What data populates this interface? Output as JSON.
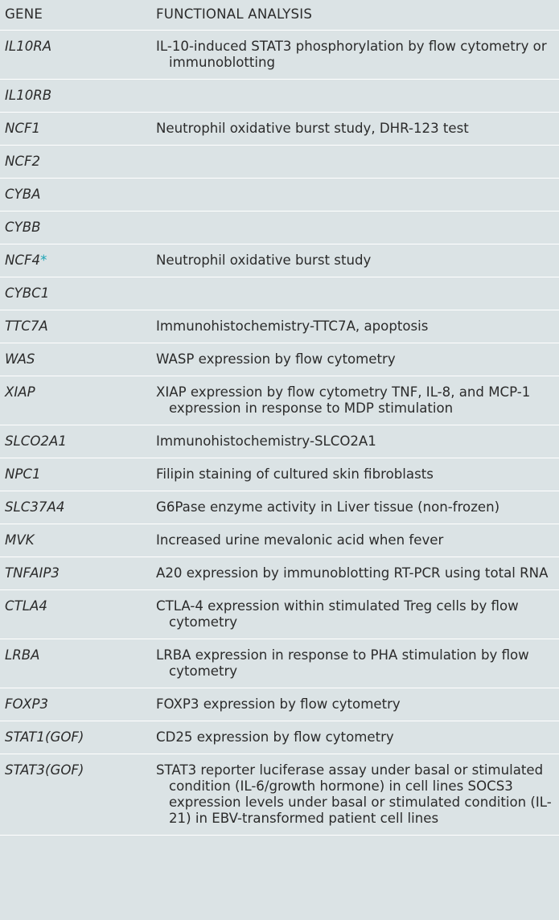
{
  "table": {
    "headers": [
      "GENE",
      "FUNCTIONAL ANALYSIS"
    ],
    "rows": [
      {
        "gene": "IL10RA",
        "analysis": "IL-10-induced STAT3 phosphorylation by flow cytometry or immunoblotting"
      },
      {
        "gene": "IL10RB",
        "analysis": ""
      },
      {
        "gene": "NCF1",
        "analysis": "Neutrophil oxidative burst study, DHR-123 test"
      },
      {
        "gene": "NCF2",
        "analysis": ""
      },
      {
        "gene": "CYBA",
        "analysis": ""
      },
      {
        "gene": "CYBB",
        "analysis": ""
      },
      {
        "gene": "NCF4",
        "marker": "*",
        "analysis": "Neutrophil oxidative burst study"
      },
      {
        "gene": "CYBC1",
        "analysis": ""
      },
      {
        "gene": "TTC7A",
        "analysis": "Immunohistochemistry-TTC7A, apoptosis"
      },
      {
        "gene": "WAS",
        "analysis": "WASP expression by flow cytometry"
      },
      {
        "gene": "XIAP",
        "analysis": "XIAP expression by flow cytometry TNF, IL-8, and MCP-1 expression in response to MDP stimulation"
      },
      {
        "gene": "SLCO2A1",
        "analysis": "Immunohistochemistry-SLCO2A1"
      },
      {
        "gene": "NPC1",
        "analysis": "Filipin staining of cultured skin fibroblasts"
      },
      {
        "gene": "SLC37A4",
        "analysis": "G6Pase enzyme activity in Liver tissue (non-frozen)"
      },
      {
        "gene": "MVK",
        "analysis": "Increased urine mevalonic acid when fever"
      },
      {
        "gene": "TNFAIP3",
        "analysis": "A20 expression by immunoblotting RT-PCR using total RNA"
      },
      {
        "gene": "CTLA4",
        "analysis": "CTLA-4 expression within stimulated Treg cells by flow cytometry"
      },
      {
        "gene": "LRBA",
        "analysis": "LRBA expression in response to PHA stimulation by flow cytometry"
      },
      {
        "gene": "FOXP3",
        "analysis": "FOXP3 expression by flow cytometry"
      },
      {
        "gene": "STAT1(GOF)",
        "analysis": "CD25 expression by flow cytometry"
      },
      {
        "gene": "STAT3(GOF)",
        "analysis": "STAT3 reporter luciferase assay under basal or stimulated condition (IL-6/growth hormone) in cell lines SOCS3 expression levels under basal or stimulated condition (IL-21) in EBV-transformed patient cell lines"
      }
    ]
  },
  "colors": {
    "background": "#dbe3e5",
    "divider": "#ffffff",
    "text": "#2b2b2b",
    "marker": "#1aa3b5"
  }
}
